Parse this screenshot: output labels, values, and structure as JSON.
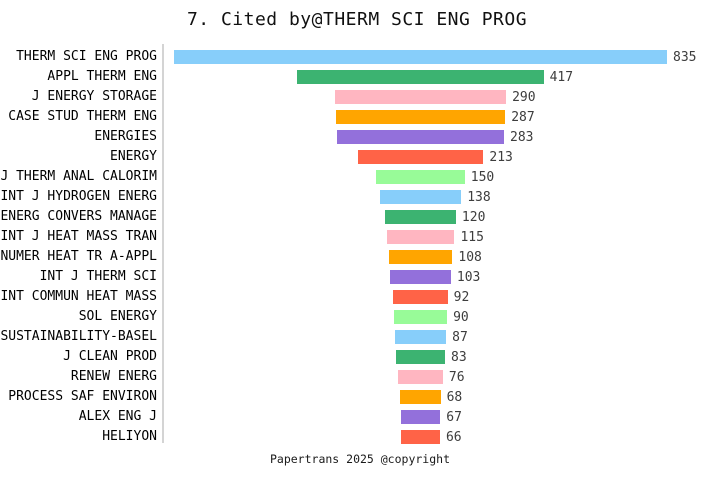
{
  "title": "7. Cited by@THERM SCI ENG PROG",
  "footer": "Papertrans 2025 @copyright",
  "colors": {
    "palette": [
      "#87CEFA",
      "#3CB371",
      "#FFB6C1",
      "#FFA500",
      "#9370DB",
      "#FF6347",
      "#98FB98"
    ],
    "axis_line": "#d4d4d4",
    "label_text": "#000000",
    "value_text": "#3d3d3d",
    "background": "#ffffff"
  },
  "chart_data": {
    "type": "bar",
    "orientation": "horizontal",
    "bar_alignment": "center-funnel",
    "title": "7. Cited by@THERM SCI ENG PROG",
    "xlabel": "",
    "ylabel": "",
    "xlim": [
      0,
      835
    ],
    "grid": false,
    "legend": false,
    "value_labels_position": "right-of-bar",
    "categories": [
      "THERM SCI ENG PROG",
      "APPL THERM ENG",
      "J ENERGY STORAGE",
      "CASE STUD THERM ENG",
      "ENERGIES",
      "ENERGY",
      "J THERM ANAL CALORIM",
      "INT J HYDROGEN ENERG",
      "ENERG CONVERS MANAGE",
      "INT J HEAT MASS TRAN",
      "NUMER HEAT TR A-APPL",
      "INT J THERM SCI",
      "INT COMMUN HEAT MASS",
      "SOL ENERGY",
      "SUSTAINABILITY-BASEL",
      "J CLEAN PROD",
      "RENEW ENERG",
      "PROCESS SAF ENVIRON",
      "ALEX ENG J",
      "HELIYON"
    ],
    "values": [
      835,
      417,
      290,
      287,
      283,
      213,
      150,
      138,
      120,
      115,
      108,
      103,
      92,
      90,
      87,
      83,
      76,
      68,
      67,
      66
    ]
  }
}
